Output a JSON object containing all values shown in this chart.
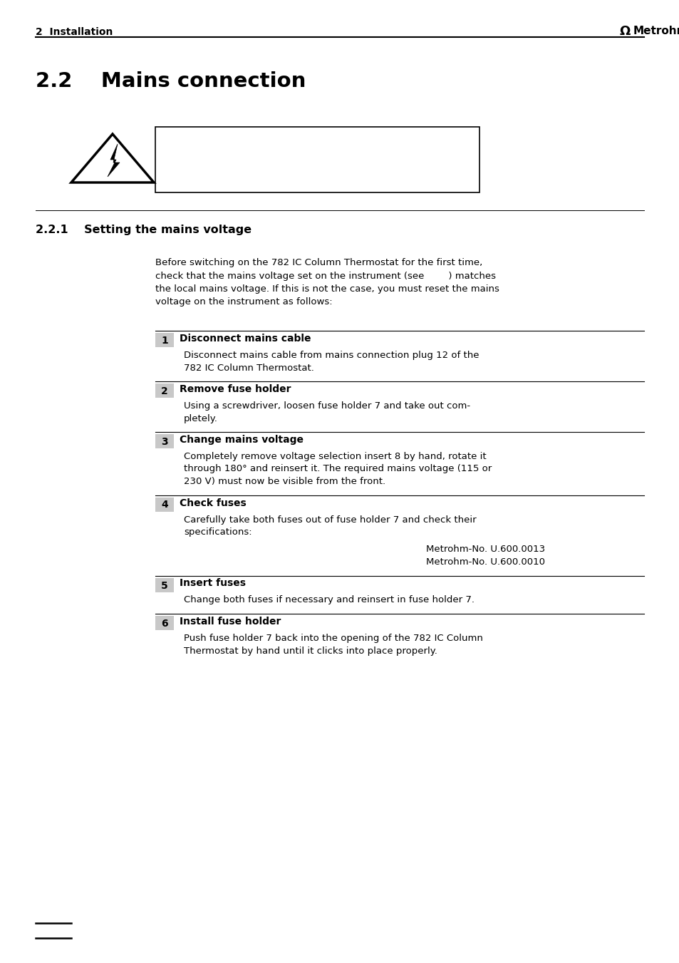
{
  "page_bg": "#ffffff",
  "header_text_left": "2  Installation",
  "header_text_right": "Metrohm",
  "section_title": "2.2    Mains connection",
  "subsection_title": "2.2.1    Setting the mains voltage",
  "intro_text": "Before switching on the 782 IC Column Thermostat for the first time,\ncheck that the mains voltage set on the instrument (see        ) matches\nthe local mains voltage. If this is not the case, you must reset the mains\nvoltage on the instrument as follows:",
  "steps": [
    {
      "num": "1",
      "title": "Disconnect mains cable",
      "body": "Disconnect mains cable from mains connection plug 12 of the\n782 IC Column Thermostat.",
      "body_bold_words": [
        "12"
      ]
    },
    {
      "num": "2",
      "title": "Remove fuse holder",
      "body": "Using a screwdriver, loosen fuse holder 7 and take out com-\npletely.",
      "body_bold_words": [
        "7"
      ]
    },
    {
      "num": "3",
      "title": "Change mains voltage",
      "body": "Completely remove voltage selection insert 8 by hand, rotate it\nthrough 180° and reinsert it. The required mains voltage (115 or\n230 V) must now be visible from the front.",
      "body_bold_words": [
        "8"
      ]
    },
    {
      "num": "4",
      "title": "Check fuses",
      "body": "Carefully take both fuses out of fuse holder 7 and check their\nspecifications:",
      "body_bold_words": [
        "7"
      ],
      "extra_lines": [
        "Metrohm-No. U.600.0013",
        "Metrohm-No. U.600.0010"
      ]
    },
    {
      "num": "5",
      "title": "Insert fuses",
      "body": "Change both fuses if necessary and reinsert in fuse holder 7.",
      "body_bold_words": [
        "7"
      ]
    },
    {
      "num": "6",
      "title": "Install fuse holder",
      "body": "Push fuse holder 7 back into the opening of the 782 IC Column\nThermostat by hand until it clicks into place properly.",
      "body_bold_words": [
        "7"
      ]
    }
  ],
  "step_bg": "#c8c8c8",
  "step_num_color": "#000000",
  "step_title_color": "#000000",
  "body_text_color": "#000000",
  "line_color": "#000000",
  "warning_box_color": "#ffffff",
  "warning_box_border": "#000000"
}
